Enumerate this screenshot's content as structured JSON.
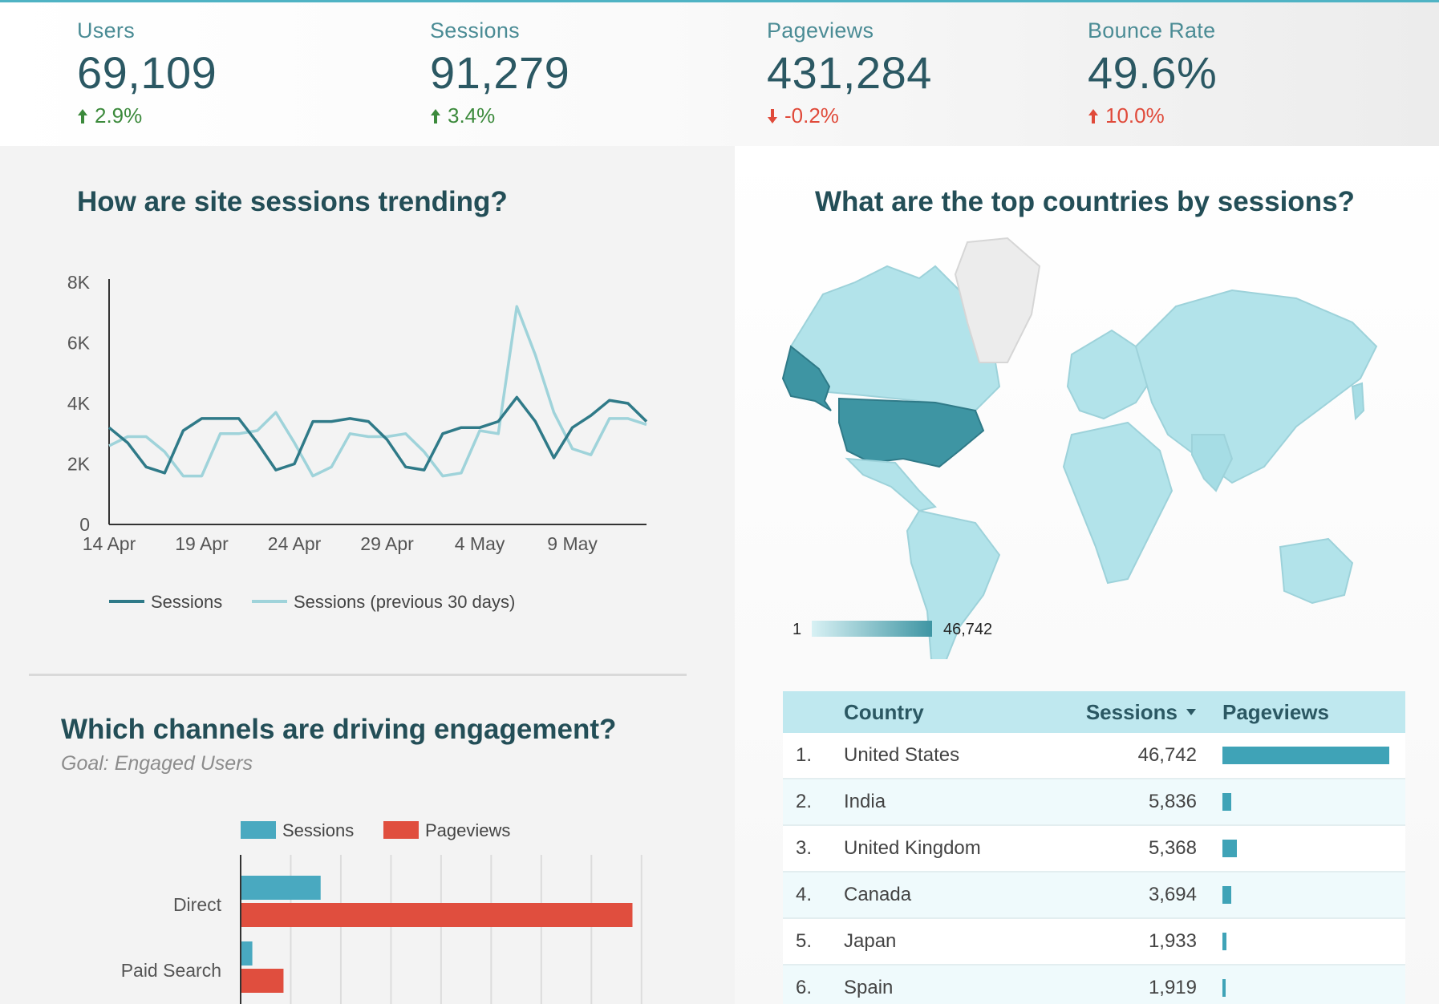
{
  "kpis": [
    {
      "label": "Users",
      "value": "69,109",
      "delta": "2.9%",
      "direction": "up",
      "tone": "pos"
    },
    {
      "label": "Sessions",
      "value": "91,279",
      "delta": "3.4%",
      "direction": "up",
      "tone": "pos"
    },
    {
      "label": "Pageviews",
      "value": "431,284",
      "delta": "-0.2%",
      "direction": "down",
      "tone": "neg"
    },
    {
      "label": "Bounce Rate",
      "value": "49.6%",
      "delta": "10.0%",
      "direction": "up",
      "tone": "neg"
    }
  ],
  "sessions_section": {
    "title": "How are site sessions trending?"
  },
  "channels_section": {
    "title": "Which channels are driving engagement?",
    "subtitle": "Goal: Engaged Users"
  },
  "countries_section": {
    "title": "What are the top countries by sessions?",
    "map_legend_min": "1",
    "map_legend_max": "46,742",
    "table_headers": {
      "country": "Country",
      "sessions": "Sessions",
      "pageviews": "Pageviews"
    },
    "rows": [
      {
        "index": "1.",
        "country": "United States",
        "sessions": "46,742",
        "pageviews_share": 1.0
      },
      {
        "index": "2.",
        "country": "India",
        "sessions": "5,836",
        "pageviews_share": 0.055
      },
      {
        "index": "3.",
        "country": "United Kingdom",
        "sessions": "5,368",
        "pageviews_share": 0.085
      },
      {
        "index": "4.",
        "country": "Canada",
        "sessions": "3,694",
        "pageviews_share": 0.055
      },
      {
        "index": "5.",
        "country": "Japan",
        "sessions": "1,933",
        "pageviews_share": 0.025
      },
      {
        "index": "6.",
        "country": "Spain",
        "sessions": "1,919",
        "pageviews_share": 0.02
      }
    ]
  },
  "chart_data": [
    {
      "type": "line",
      "title": "How are site sessions trending?",
      "x_tick_labels": [
        "14 Apr",
        "19 Apr",
        "24 Apr",
        "29 Apr",
        "4 May",
        "9 May"
      ],
      "y_tick_labels": [
        "0",
        "2K",
        "4K",
        "6K",
        "8K"
      ],
      "ylim": [
        0,
        8000
      ],
      "legend": [
        "Sessions",
        "Sessions (previous 30 days)"
      ],
      "series": [
        {
          "name": "Sessions",
          "color": "#2f7a88",
          "values": [
            3200,
            2700,
            1900,
            1700,
            3100,
            3500,
            3500,
            3500,
            2700,
            1800,
            2000,
            3400,
            3400,
            3500,
            3400,
            2800,
            1900,
            1800,
            3000,
            3200,
            3200,
            3400,
            4200,
            3400,
            2200,
            3200,
            3600,
            4100,
            4000,
            3400
          ]
        },
        {
          "name": "Sessions (previous 30 days)",
          "color": "#9fd3da",
          "values": [
            2600,
            2900,
            2900,
            2400,
            1600,
            1600,
            3000,
            3000,
            3100,
            3700,
            2700,
            1600,
            1900,
            3000,
            2900,
            2900,
            3000,
            2400,
            1600,
            1700,
            3100,
            3000,
            7200,
            5600,
            3700,
            2500,
            2300,
            3500,
            3500,
            3300
          ]
        }
      ]
    },
    {
      "type": "bar",
      "title": "Which channels are driving engagement?",
      "categories": [
        "Direct",
        "Paid Search"
      ],
      "series": [
        {
          "name": "Sessions",
          "color": "#49a9c0",
          "values": [
            1.6,
            0.22
          ]
        },
        {
          "name": "Pageviews",
          "color": "#e04e3e",
          "values": [
            7.9,
            0.85
          ]
        }
      ],
      "xlim": [
        0,
        8.2
      ]
    }
  ]
}
